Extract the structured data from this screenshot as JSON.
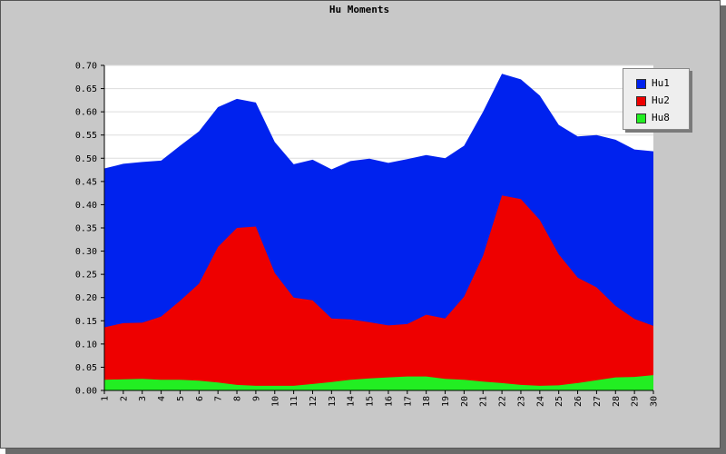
{
  "chart_data": {
    "type": "area",
    "title": "Hu Moments",
    "xlabel": "",
    "ylabel": "",
    "x": [
      1,
      2,
      3,
      4,
      5,
      6,
      7,
      8,
      9,
      10,
      11,
      12,
      13,
      14,
      15,
      16,
      17,
      18,
      19,
      20,
      21,
      22,
      23,
      24,
      25,
      26,
      27,
      28,
      29,
      30
    ],
    "ylim": [
      0,
      0.7
    ],
    "yticks": [
      "0.00",
      "0.05",
      "0.10",
      "0.15",
      "0.20",
      "0.25",
      "0.30",
      "0.35",
      "0.40",
      "0.45",
      "0.50",
      "0.55",
      "0.60",
      "0.65",
      "0.70"
    ],
    "stacked": false,
    "grid": true,
    "legend_position": "top-right",
    "series": [
      {
        "name": "Hu1",
        "color": "#0022ee",
        "values": [
          0.478,
          0.488,
          0.492,
          0.495,
          0.527,
          0.558,
          0.61,
          0.628,
          0.62,
          0.535,
          0.487,
          0.497,
          0.476,
          0.494,
          0.499,
          0.49,
          0.498,
          0.507,
          0.5,
          0.527,
          0.6,
          0.682,
          0.67,
          0.635,
          0.572,
          0.547,
          0.55,
          0.54,
          0.519,
          0.515
        ]
      },
      {
        "name": "Hu2",
        "color": "#ee0000",
        "values": [
          0.136,
          0.145,
          0.146,
          0.159,
          0.193,
          0.23,
          0.309,
          0.35,
          0.353,
          0.253,
          0.2,
          0.194,
          0.155,
          0.153,
          0.147,
          0.14,
          0.143,
          0.163,
          0.155,
          0.202,
          0.29,
          0.42,
          0.412,
          0.367,
          0.293,
          0.243,
          0.222,
          0.182,
          0.154,
          0.139
        ]
      },
      {
        "name": "Hu8",
        "color": "#22ee22",
        "values": [
          0.023,
          0.024,
          0.025,
          0.023,
          0.023,
          0.021,
          0.017,
          0.012,
          0.01,
          0.01,
          0.01,
          0.014,
          0.018,
          0.023,
          0.026,
          0.028,
          0.03,
          0.03,
          0.025,
          0.023,
          0.019,
          0.016,
          0.012,
          0.01,
          0.011,
          0.016,
          0.022,
          0.028,
          0.029,
          0.033
        ]
      }
    ]
  }
}
